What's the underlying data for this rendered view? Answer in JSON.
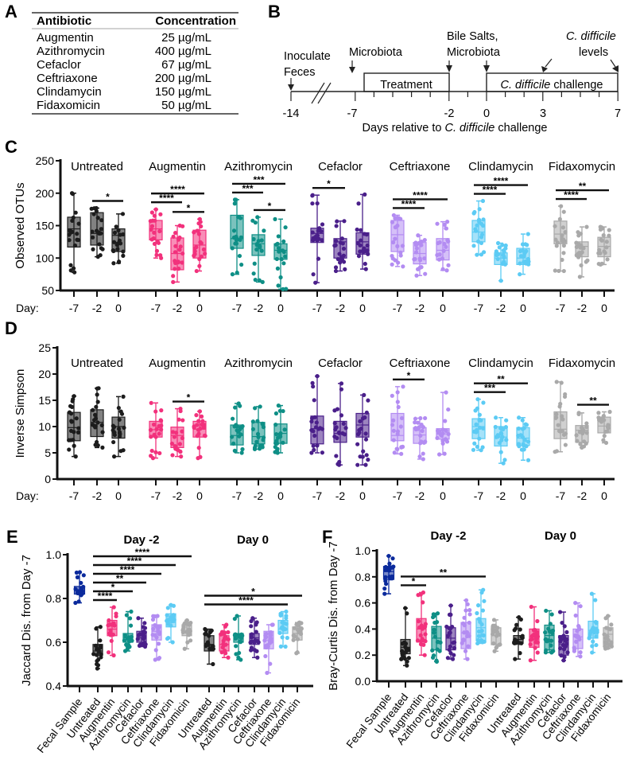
{
  "panels": {
    "a": "A",
    "b": "B",
    "c": "C",
    "d": "D",
    "e": "E",
    "f": "F"
  },
  "table": {
    "headers": [
      "Antibiotic",
      "Concentration"
    ],
    "rows": [
      {
        "antibiotic": "Augmentin",
        "concentration": "25 µg/mL"
      },
      {
        "antibiotic": "Azithromycin",
        "concentration": "400 µg/mL"
      },
      {
        "antibiotic": "Cefaclor",
        "concentration": "67 µg/mL"
      },
      {
        "antibiotic": "Ceftriaxone",
        "concentration": "200 µg/mL"
      },
      {
        "antibiotic": "Clindamycin",
        "concentration": "150 µg/mL"
      },
      {
        "antibiotic": "Fidaxomicin",
        "concentration": "50 µg/mL"
      }
    ]
  },
  "timeline": {
    "inoculate": [
      "Inoculate",
      "Feces"
    ],
    "microbiota": "Microbiota",
    "bile": [
      "Bile Salts,",
      "Microbiota"
    ],
    "cdiff_levels": [
      "C. difficile",
      "levels"
    ],
    "treatment": "Treatment",
    "challenge_italic": "C. difficile",
    "challenge_rest": " challenge",
    "days": [
      "-14",
      "-7",
      "-2",
      "0",
      "3",
      "7"
    ],
    "axis_label_pre": "Days relative to ",
    "axis_label_italic": "C. difficile",
    "axis_label_post": " challenge"
  },
  "colors": {
    "Untreated": "#1c1c1c",
    "Augmentin": "#f2317c",
    "Azithromycin": "#0e8f86",
    "Cefaclor": "#4a1f8a",
    "Ceftriaxone": "#b38cf2",
    "Clindamycin": "#5ccbf4",
    "Fidaxomycin": "#a9a9a9",
    "Fecal Sample": "#0b2a9c"
  },
  "chart_data": [
    {
      "panel": "C",
      "type": "box",
      "ylabel": "Observed OTUs",
      "ylim": [
        50,
        250
      ],
      "yticks": [
        "50",
        "100",
        "150",
        "200",
        "250"
      ],
      "x_prefix": "Day:",
      "days": [
        "-7",
        "-2",
        "0"
      ],
      "box_format": "[min, q1, median, q3, max]",
      "groups": [
        {
          "name": "Untreated",
          "boxes": [
            [
              78,
              117,
              145,
              163,
              200
            ],
            [
              102,
              120,
              138,
              170,
              177
            ],
            [
              92,
              110,
              135,
              145,
              168
            ]
          ]
        },
        {
          "name": "Augmentin",
          "boxes": [
            [
              100,
              128,
              145,
              158,
              175
            ],
            [
              63,
              82,
              107,
              131,
              150
            ],
            [
              80,
              100,
              120,
              143,
              160
            ]
          ]
        },
        {
          "name": "Azithromycin",
          "boxes": [
            [
              75,
              115,
              130,
              166,
              190
            ],
            [
              63,
              104,
              122,
              136,
              163
            ],
            [
              52,
              98,
              112,
              122,
              160
            ]
          ]
        },
        {
          "name": "Cefaclor",
          "boxes": [
            [
              62,
              124,
              138,
              146,
              197
            ],
            [
              80,
              100,
              125,
              130,
              157
            ],
            [
              83,
              106,
              125,
              139,
              198
            ]
          ]
        },
        {
          "name": "Ceftriaxone",
          "boxes": [
            [
              87,
              110,
              136,
              158,
              166
            ],
            [
              73,
              91,
              107,
              124,
              135
            ],
            [
              81,
              97,
              112,
              130,
              156
            ]
          ]
        },
        {
          "name": "Clindamycin",
          "boxes": [
            [
              105,
              125,
              140,
              158,
              188
            ],
            [
              65,
              90,
              100,
              108,
              123
            ],
            [
              75,
              90,
              100,
              115,
              137
            ]
          ]
        },
        {
          "name": "Fidaxomycin",
          "boxes": [
            [
              80,
              122,
              137,
              157,
              180
            ],
            [
              71,
              102,
              118,
              125,
              148
            ],
            [
              90,
              102,
              118,
              132,
              148
            ]
          ]
        }
      ],
      "significance": [
        {
          "group": 0,
          "from": 1,
          "to": 2,
          "label": "*"
        },
        {
          "group": 1,
          "from": 0,
          "to": 1,
          "label": "****"
        },
        {
          "group": 1,
          "from": 1,
          "to": 2,
          "label": "*"
        },
        {
          "group": 1,
          "from": 0,
          "to": 2,
          "label": "****"
        },
        {
          "group": 2,
          "from": 0,
          "to": 1,
          "label": "***"
        },
        {
          "group": 2,
          "from": 1,
          "to": 2,
          "label": "*"
        },
        {
          "group": 2,
          "from": 0,
          "to": 2,
          "label": "***"
        },
        {
          "group": 3,
          "from": 0,
          "to": 1,
          "label": "*"
        },
        {
          "group": 4,
          "from": 0,
          "to": 1,
          "label": "****"
        },
        {
          "group": 4,
          "from": 0,
          "to": 2,
          "label": "****"
        },
        {
          "group": 5,
          "from": 0,
          "to": 1,
          "label": "****"
        },
        {
          "group": 5,
          "from": 0,
          "to": 2,
          "label": "****"
        },
        {
          "group": 6,
          "from": 0,
          "to": 1,
          "label": "****"
        },
        {
          "group": 6,
          "from": 0,
          "to": 2,
          "label": "**"
        }
      ]
    },
    {
      "panel": "D",
      "type": "box",
      "ylabel": "Inverse Simpson",
      "ylim": [
        0,
        25
      ],
      "yticks": [
        "0",
        "5",
        "10",
        "15",
        "20",
        "25"
      ],
      "x_prefix": "Day:",
      "days": [
        "-7",
        "-2",
        "0"
      ],
      "box_format": "[min, q1, median, q3, max]",
      "groups": [
        {
          "name": "Untreated",
          "boxes": [
            [
              4.3,
              7.3,
              9.8,
              12.7,
              15.8
            ],
            [
              6,
              8.1,
              10.8,
              13.2,
              17.3
            ],
            [
              4.3,
              7.8,
              10,
              11.8,
              15.7
            ]
          ]
        },
        {
          "name": "Augmentin",
          "boxes": [
            [
              4,
              8,
              9.4,
              11,
              14.5
            ],
            [
              4.3,
              6,
              8.3,
              9.9,
              13.4
            ],
            [
              4,
              8,
              9.5,
              11,
              12.9
            ]
          ]
        },
        {
          "name": "Azithromycin",
          "boxes": [
            [
              5,
              6.5,
              8.3,
              10.3,
              14.4
            ],
            [
              5.7,
              6.7,
              8.1,
              10.8,
              13.8
            ],
            [
              5,
              6.8,
              8.7,
              10.5,
              14
            ]
          ]
        },
        {
          "name": "Cefaclor",
          "boxes": [
            [
              5,
              6.7,
              9.6,
              12,
              19.6
            ],
            [
              2.7,
              7,
              8.7,
              11,
              18.2
            ],
            [
              2.7,
              8,
              10.3,
              12.5,
              16
            ]
          ]
        },
        {
          "name": "Ceftriaxone",
          "boxes": [
            [
              4.8,
              7.3,
              8.3,
              12.5,
              17.6
            ],
            [
              3.8,
              6.8,
              8.4,
              9.8,
              11.6
            ],
            [
              4.7,
              7.6,
              8.6,
              9.6,
              16.5
            ]
          ]
        },
        {
          "name": "Clindamycin",
          "boxes": [
            [
              5.5,
              7.7,
              10,
              11.5,
              15.2
            ],
            [
              3,
              6.3,
              8,
              10,
              11.7
            ],
            [
              3.6,
              6.4,
              7.8,
              9.8,
              11.7
            ]
          ]
        },
        {
          "name": "Fidaxomycin",
          "boxes": [
            [
              5.2,
              7.7,
              9.5,
              12.8,
              18.5
            ],
            [
              6,
              7,
              9.3,
              10.2,
              12.6
            ],
            [
              6.9,
              8.8,
              10.1,
              11.8,
              12.8
            ]
          ]
        }
      ],
      "significance": [
        {
          "group": 1,
          "from": 1,
          "to": 2,
          "label": "*"
        },
        {
          "group": 4,
          "from": 0,
          "to": 1,
          "label": "*"
        },
        {
          "group": 5,
          "from": 0,
          "to": 1,
          "label": "***"
        },
        {
          "group": 5,
          "from": 0,
          "to": 2,
          "label": "**"
        },
        {
          "group": 6,
          "from": 1,
          "to": 2,
          "label": "**"
        }
      ]
    },
    {
      "panel": "E",
      "type": "box",
      "ylabel": "Jaccard Dis. from Day -7",
      "ylim": [
        0.4,
        1.0
      ],
      "yticks": [
        "0.4",
        "0.6",
        "0.8",
        "1.0"
      ],
      "sections": [
        "Day -2",
        "Day 0"
      ],
      "box_format": "[min, q1, median, q3, max]",
      "categories": [
        {
          "name": "Fecal Sample",
          "color_key": "Fecal Sample",
          "box": [
            0.78,
            0.82,
            0.84,
            0.855,
            0.92
          ]
        },
        {
          "name": "Untreated",
          "color_key": "Untreated",
          "box": [
            0.48,
            0.54,
            0.56,
            0.59,
            0.67
          ]
        },
        {
          "name": "Augmentin",
          "color_key": "Augmentin",
          "box": [
            0.54,
            0.63,
            0.66,
            0.7,
            0.76
          ]
        },
        {
          "name": "Azithromycin",
          "color_key": "Azithromycin",
          "box": [
            0.56,
            0.6,
            0.62,
            0.64,
            0.74
          ]
        },
        {
          "name": "Cefaclor",
          "color_key": "Cefaclor",
          "box": [
            0.58,
            0.6,
            0.62,
            0.65,
            0.71
          ]
        },
        {
          "name": "Ceftriaxone",
          "color_key": "Ceftriaxone",
          "box": [
            0.52,
            0.61,
            0.65,
            0.68,
            0.72
          ]
        },
        {
          "name": "Clindamycin",
          "color_key": "Clindamycin",
          "box": [
            0.6,
            0.67,
            0.69,
            0.73,
            0.77
          ]
        },
        {
          "name": "Fidaxomicin",
          "color_key": "Fidaxomycin",
          "box": [
            0.57,
            0.63,
            0.65,
            0.68,
            0.7
          ]
        },
        {
          "name": "Untreated",
          "color_key": "Untreated",
          "box": [
            0.5,
            0.56,
            0.59,
            0.63,
            0.66
          ]
        },
        {
          "name": "Augmentin",
          "color_key": "Augmentin",
          "box": [
            0.53,
            0.56,
            0.59,
            0.63,
            0.68
          ]
        },
        {
          "name": "Azithromycin",
          "color_key": "Azithromycin",
          "box": [
            0.52,
            0.6,
            0.62,
            0.64,
            0.72
          ]
        },
        {
          "name": "Cefaclor",
          "color_key": "Cefaclor",
          "box": [
            0.53,
            0.59,
            0.62,
            0.64,
            0.71
          ]
        },
        {
          "name": "Ceftriaxone",
          "color_key": "Ceftriaxone",
          "box": [
            0.46,
            0.57,
            0.61,
            0.65,
            0.68
          ]
        },
        {
          "name": "Clindamycin",
          "color_key": "Clindamycin",
          "box": [
            0.58,
            0.64,
            0.66,
            0.7,
            0.74
          ]
        },
        {
          "name": "Fidaxomicin",
          "color_key": "Fidaxomycin",
          "box": [
            0.55,
            0.61,
            0.64,
            0.67,
            0.69
          ]
        }
      ],
      "significance": [
        {
          "from": 1,
          "to": 2,
          "label": "****"
        },
        {
          "from": 1,
          "to": 3,
          "label": "*"
        },
        {
          "from": 1,
          "to": 4,
          "label": "**"
        },
        {
          "from": 1,
          "to": 5,
          "label": "****"
        },
        {
          "from": 1,
          "to": 6,
          "label": "****"
        },
        {
          "from": 1,
          "to": 7,
          "label": "****"
        },
        {
          "from": 8,
          "to": 13,
          "label": "****"
        },
        {
          "from": 8,
          "to": 14,
          "label": "*"
        }
      ]
    },
    {
      "panel": "F",
      "type": "box",
      "ylabel": "Bray-Curtis Dis. from Day -7",
      "ylim": [
        0.0,
        1.0
      ],
      "yticks": [
        "0.0",
        "0.2",
        "0.4",
        "0.6",
        "0.8",
        "1.0"
      ],
      "sections": [
        "Day -2",
        "Day 0"
      ],
      "box_format": "[min, q1, median, q3, max]",
      "categories": [
        {
          "name": "Fecal Sample",
          "color_key": "Fecal Sample",
          "box": [
            0.67,
            0.78,
            0.84,
            0.88,
            0.96
          ]
        },
        {
          "name": "Untreated",
          "color_key": "Untreated",
          "box": [
            0.12,
            0.21,
            0.26,
            0.32,
            0.56
          ]
        },
        {
          "name": "Augmentin",
          "color_key": "Augmentin",
          "box": [
            0.2,
            0.3,
            0.4,
            0.48,
            0.68
          ]
        },
        {
          "name": "Azithromycin",
          "color_key": "Azithromycin",
          "box": [
            0.15,
            0.24,
            0.33,
            0.42,
            0.52
          ]
        },
        {
          "name": "Cefaclor",
          "color_key": "Cefaclor",
          "box": [
            0.17,
            0.24,
            0.33,
            0.41,
            0.58
          ]
        },
        {
          "name": "Ceftriaxone",
          "color_key": "Ceftriaxone",
          "box": [
            0.17,
            0.25,
            0.37,
            0.45,
            0.62
          ]
        },
        {
          "name": "Clindamycin",
          "color_key": "Clindamycin",
          "box": [
            0.29,
            0.31,
            0.41,
            0.48,
            0.7
          ]
        },
        {
          "name": "Fidaxomicin",
          "color_key": "Fidaxomycin",
          "box": [
            0.23,
            0.28,
            0.35,
            0.41,
            0.47
          ]
        },
        {
          "name": "Untreated",
          "color_key": "Untreated",
          "box": [
            0.17,
            0.29,
            0.32,
            0.35,
            0.49
          ]
        },
        {
          "name": "Augmentin",
          "color_key": "Augmentin",
          "box": [
            0.16,
            0.26,
            0.34,
            0.4,
            0.57
          ]
        },
        {
          "name": "Azithromycin",
          "color_key": "Azithromycin",
          "box": [
            0.22,
            0.24,
            0.35,
            0.43,
            0.54
          ]
        },
        {
          "name": "Cefaclor",
          "color_key": "Cefaclor",
          "box": [
            0.16,
            0.2,
            0.28,
            0.35,
            0.53
          ]
        },
        {
          "name": "Ceftriaxone",
          "color_key": "Ceftriaxone",
          "box": [
            0.19,
            0.25,
            0.34,
            0.4,
            0.6
          ]
        },
        {
          "name": "Clindamycin",
          "color_key": "Clindamycin",
          "box": [
            0.22,
            0.33,
            0.39,
            0.46,
            0.67
          ]
        },
        {
          "name": "Fidaxomicin",
          "color_key": "Fidaxomycin",
          "box": [
            0.25,
            0.28,
            0.36,
            0.41,
            0.5
          ]
        }
      ],
      "significance": [
        {
          "from": 1,
          "to": 2,
          "label": "*"
        },
        {
          "from": 1,
          "to": 6,
          "label": "**"
        }
      ]
    }
  ]
}
